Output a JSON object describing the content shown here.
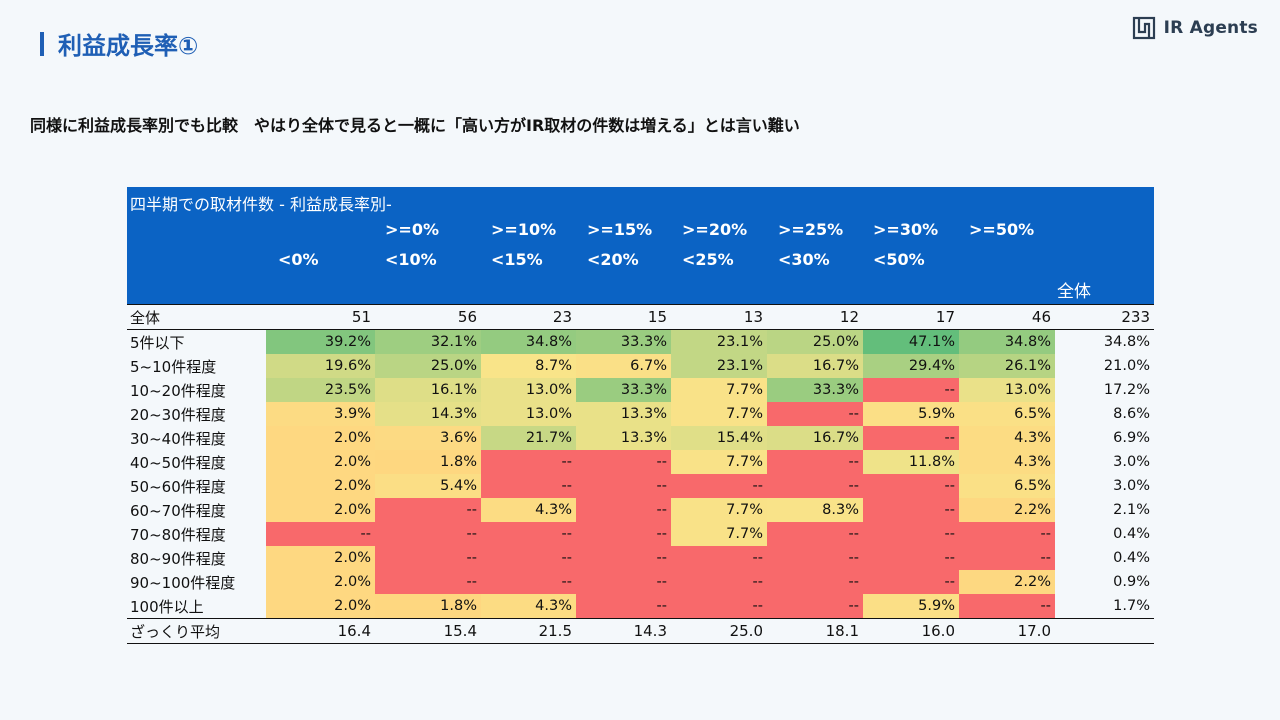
{
  "page": {
    "title": "利益成長率①",
    "logo_text": "IR Agents",
    "subtitle": "同様に利益成長率別でも比較　やはり全体で見ると一概に「高い方がIR取材の件数は増える」とは言い難い"
  },
  "table": {
    "caption": "四半期での取材件数 - 利益成長率別-",
    "columns": [
      {
        "line1": "",
        "line2": "<0%"
      },
      {
        "line1": ">=0%",
        "line2": "<10%"
      },
      {
        "line1": ">=10%",
        "line2": "<15%"
      },
      {
        "line1": ">=15%",
        "line2": "<20%"
      },
      {
        "line1": ">=20%",
        "line2": "<25%"
      },
      {
        "line1": ">=25%",
        "line2": "<30%"
      },
      {
        "line1": ">=30%",
        "line2": "<50%"
      },
      {
        "line1": ">=50%",
        "line2": ""
      }
    ],
    "total_header": "全体",
    "total_row": {
      "label": "全体",
      "values": [
        "51",
        "56",
        "23",
        "15",
        "13",
        "12",
        "17",
        "46"
      ],
      "total": "233"
    },
    "rows": [
      {
        "label": "5件以下",
        "values": [
          "39.2%",
          "32.1%",
          "34.8%",
          "33.3%",
          "23.1%",
          "25.0%",
          "47.1%",
          "34.8%"
        ],
        "total": "34.8%"
      },
      {
        "label": "5~10件程度",
        "values": [
          "19.6%",
          "25.0%",
          "8.7%",
          "6.7%",
          "23.1%",
          "16.7%",
          "29.4%",
          "26.1%"
        ],
        "total": "21.0%"
      },
      {
        "label": "10~20件程度",
        "values": [
          "23.5%",
          "16.1%",
          "13.0%",
          "33.3%",
          "7.7%",
          "33.3%",
          "--",
          "13.0%"
        ],
        "total": "17.2%"
      },
      {
        "label": "20~30件程度",
        "values": [
          "3.9%",
          "14.3%",
          "13.0%",
          "13.3%",
          "7.7%",
          "--",
          "5.9%",
          "6.5%"
        ],
        "total": "8.6%"
      },
      {
        "label": "30~40件程度",
        "values": [
          "2.0%",
          "3.6%",
          "21.7%",
          "13.3%",
          "15.4%",
          "16.7%",
          "--",
          "4.3%"
        ],
        "total": "6.9%"
      },
      {
        "label": "40~50件程度",
        "values": [
          "2.0%",
          "1.8%",
          "--",
          "--",
          "7.7%",
          "--",
          "11.8%",
          "4.3%"
        ],
        "total": "3.0%"
      },
      {
        "label": "50~60件程度",
        "values": [
          "2.0%",
          "5.4%",
          "--",
          "--",
          "--",
          "--",
          "--",
          "6.5%"
        ],
        "total": "3.0%"
      },
      {
        "label": "60~70件程度",
        "values": [
          "2.0%",
          "--",
          "4.3%",
          "--",
          "7.7%",
          "8.3%",
          "--",
          "2.2%"
        ],
        "total": "2.1%"
      },
      {
        "label": "70~80件程度",
        "values": [
          "--",
          "--",
          "--",
          "--",
          "7.7%",
          "--",
          "--",
          "--"
        ],
        "total": "0.4%"
      },
      {
        "label": "80~90件程度",
        "values": [
          "2.0%",
          "--",
          "--",
          "--",
          "--",
          "--",
          "--",
          "--"
        ],
        "total": "0.4%"
      },
      {
        "label": "90~100件程度",
        "values": [
          "2.0%",
          "--",
          "--",
          "--",
          "--",
          "--",
          "--",
          "2.2%"
        ],
        "total": "0.9%"
      },
      {
        "label": "100件以上",
        "values": [
          "2.0%",
          "1.8%",
          "4.3%",
          "--",
          "--",
          "--",
          "5.9%",
          "--"
        ],
        "total": "1.7%"
      }
    ],
    "avg_row": {
      "label": "ざっくり平均",
      "values": [
        "16.4",
        "15.4",
        "21.5",
        "14.3",
        "25.0",
        "18.1",
        "16.0",
        "17.0"
      ],
      "total": ""
    }
  },
  "colors": {
    "accent": "#1f5fb5",
    "header_bg": "#0b63c4",
    "empty_cell": "#f8696b",
    "scale_low": "#ffd47e",
    "scale_mid": "#f8e58a",
    "scale_high": "#63be7b"
  }
}
